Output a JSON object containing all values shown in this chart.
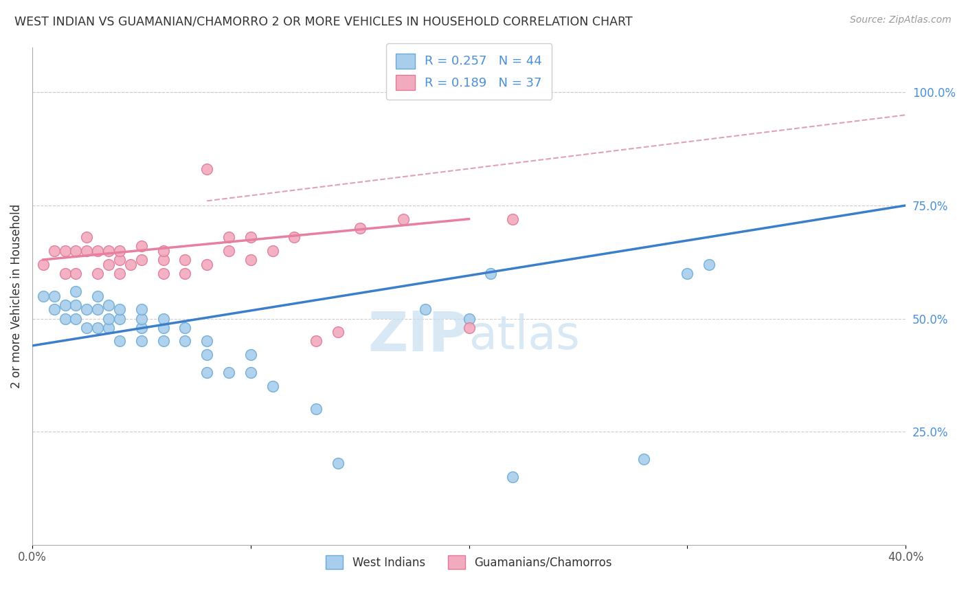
{
  "title": "WEST INDIAN VS GUAMANIAN/CHAMORRO 2 OR MORE VEHICLES IN HOUSEHOLD CORRELATION CHART",
  "source": "Source: ZipAtlas.com",
  "ylabel": "2 or more Vehicles in Household",
  "xlim": [
    0.0,
    0.4
  ],
  "ylim": [
    0.0,
    1.1
  ],
  "xticks": [
    0.0,
    0.1,
    0.2,
    0.3,
    0.4
  ],
  "xtick_labels": [
    "0.0%",
    "",
    "",
    "",
    "40.0%"
  ],
  "ytick_right_labels": [
    "25.0%",
    "50.0%",
    "75.0%",
    "100.0%"
  ],
  "ytick_right_values": [
    0.25,
    0.5,
    0.75,
    1.0
  ],
  "legend1_label": "R = 0.257   N = 44",
  "legend2_label": "R = 0.189   N = 37",
  "legend_bottom1": "West Indians",
  "legend_bottom2": "Guamanians/Chamorros",
  "color_blue": "#A8CEEC",
  "color_pink": "#F2AABE",
  "color_blue_edge": "#6AAAD8",
  "color_pink_edge": "#E07898",
  "color_blue_line": "#3B7FCC",
  "color_pink_line": "#E87EA0",
  "color_dashed": "#E0A0B8",
  "watermark_color": "#C8DFF0",
  "west_indian_x": [
    0.005,
    0.01,
    0.01,
    0.015,
    0.015,
    0.02,
    0.02,
    0.02,
    0.025,
    0.025,
    0.03,
    0.03,
    0.03,
    0.035,
    0.035,
    0.035,
    0.04,
    0.04,
    0.04,
    0.05,
    0.05,
    0.05,
    0.05,
    0.06,
    0.06,
    0.06,
    0.07,
    0.07,
    0.08,
    0.08,
    0.08,
    0.09,
    0.1,
    0.1,
    0.11,
    0.13,
    0.14,
    0.18,
    0.2,
    0.21,
    0.22,
    0.28,
    0.3,
    0.31
  ],
  "west_indian_y": [
    0.55,
    0.52,
    0.55,
    0.5,
    0.53,
    0.5,
    0.53,
    0.56,
    0.48,
    0.52,
    0.48,
    0.52,
    0.55,
    0.48,
    0.5,
    0.53,
    0.45,
    0.5,
    0.52,
    0.45,
    0.48,
    0.5,
    0.52,
    0.45,
    0.48,
    0.5,
    0.45,
    0.48,
    0.38,
    0.42,
    0.45,
    0.38,
    0.38,
    0.42,
    0.35,
    0.3,
    0.18,
    0.52,
    0.5,
    0.6,
    0.15,
    0.19,
    0.6,
    0.62
  ],
  "guamanian_x": [
    0.005,
    0.01,
    0.015,
    0.015,
    0.02,
    0.02,
    0.025,
    0.025,
    0.03,
    0.03,
    0.035,
    0.035,
    0.04,
    0.04,
    0.04,
    0.045,
    0.05,
    0.05,
    0.06,
    0.06,
    0.06,
    0.07,
    0.07,
    0.08,
    0.08,
    0.09,
    0.09,
    0.1,
    0.1,
    0.11,
    0.12,
    0.13,
    0.14,
    0.15,
    0.17,
    0.2,
    0.22
  ],
  "guamanian_y": [
    0.62,
    0.65,
    0.6,
    0.65,
    0.6,
    0.65,
    0.65,
    0.68,
    0.6,
    0.65,
    0.62,
    0.65,
    0.6,
    0.63,
    0.65,
    0.62,
    0.63,
    0.66,
    0.6,
    0.63,
    0.65,
    0.6,
    0.63,
    0.62,
    0.83,
    0.65,
    0.68,
    0.63,
    0.68,
    0.65,
    0.68,
    0.45,
    0.47,
    0.7,
    0.72,
    0.48,
    0.72
  ],
  "blue_line_x": [
    0.0,
    0.4
  ],
  "blue_line_y": [
    0.44,
    0.75
  ],
  "pink_line_x": [
    0.005,
    0.2
  ],
  "pink_line_y": [
    0.63,
    0.72
  ],
  "dash_line_x": [
    0.08,
    0.4
  ],
  "dash_line_y": [
    0.76,
    0.95
  ]
}
